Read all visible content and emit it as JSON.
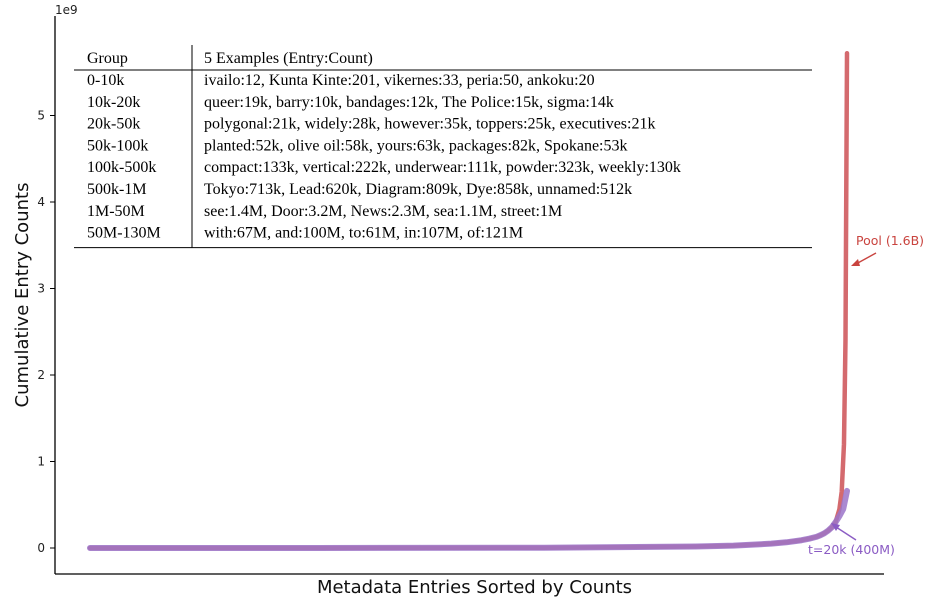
{
  "chart_data": {
    "type": "line",
    "xlabel": "Metadata Entries Sorted by Counts",
    "ylabel": "Cumulative Entry Counts",
    "y_scale_label": "1e9",
    "ylim": [
      0,
      5.75
    ],
    "y_ticks": [
      0,
      1,
      2,
      3,
      4,
      5
    ],
    "y_tick_labels": [
      "0",
      "1",
      "2",
      "3",
      "4",
      "5"
    ],
    "xlim": [
      0,
      1
    ],
    "grid": false,
    "series": [
      {
        "name": "Pool (1.6B)",
        "color": "#d46a6e",
        "x": [
          0.0,
          0.3,
          0.6,
          0.8,
          0.85,
          0.9,
          0.92,
          0.94,
          0.95,
          0.96,
          0.965,
          0.97,
          0.975,
          0.98,
          0.985,
          0.99,
          0.993,
          0.996,
          0.998,
          1.0
        ],
        "y": [
          0.0,
          0.0,
          0.003,
          0.017,
          0.028,
          0.05,
          0.066,
          0.09,
          0.108,
          0.13,
          0.148,
          0.17,
          0.2,
          0.24,
          0.3,
          0.45,
          0.65,
          1.2,
          2.4,
          5.72
        ]
      },
      {
        "name": "t=20k (400M)",
        "color": "#9b74c9",
        "x": [
          0.0,
          0.3,
          0.6,
          0.8,
          0.85,
          0.9,
          0.92,
          0.94,
          0.95,
          0.96,
          0.965,
          0.97,
          0.975,
          0.98,
          0.985,
          0.99,
          0.995,
          1.0
        ],
        "y": [
          0.0,
          0.0,
          0.003,
          0.017,
          0.028,
          0.05,
          0.066,
          0.09,
          0.108,
          0.13,
          0.148,
          0.17,
          0.2,
          0.24,
          0.3,
          0.37,
          0.45,
          0.66
        ]
      }
    ],
    "annotations": [
      {
        "text": "Pool (1.6B)",
        "color": "#c9443f"
      },
      {
        "text": "t=20k (400M)",
        "color": "#8b5cc4"
      }
    ],
    "table": {
      "headers": [
        "Group",
        "5 Examples (Entry:Count)"
      ],
      "rows": [
        [
          "0-10k",
          "ivailo:12, Kunta Kinte:201, vikernes:33, peria:50, ankoku:20"
        ],
        [
          "10k-20k",
          "queer:19k, barry:10k, bandages:12k, The Police:15k, sigma:14k"
        ],
        [
          "20k-50k",
          "polygonal:21k, widely:28k, however:35k, toppers:25k, executives:21k"
        ],
        [
          "50k-100k",
          "planted:52k, olive oil:58k, yours:63k, packages:82k, Spokane:53k"
        ],
        [
          "100k-500k",
          "compact:133k, vertical:222k, underwear:111k, powder:323k, weekly:130k"
        ],
        [
          "500k-1M",
          "Tokyo:713k, Lead:620k, Diagram:809k, Dye:858k, unnamed:512k"
        ],
        [
          "1M-50M",
          "see:1.4M, Door:3.2M, News:2.3M, sea:1.1M, street:1M"
        ],
        [
          "50M-130M",
          "with:67M, and:100M, to:61M, in:107M, of:121M"
        ]
      ]
    }
  }
}
